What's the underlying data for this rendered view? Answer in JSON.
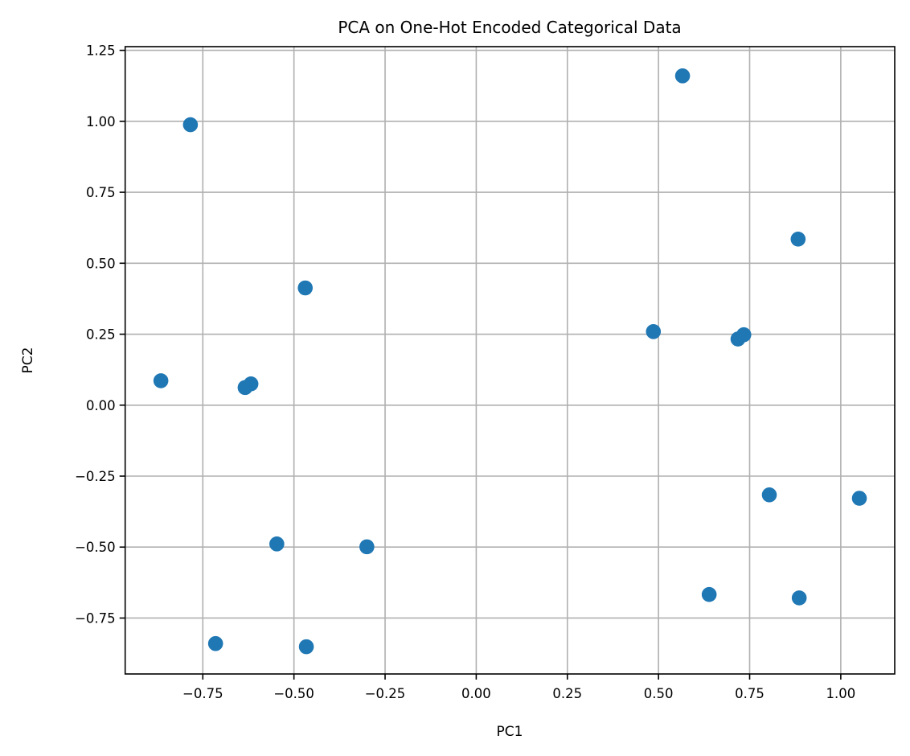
{
  "chart_data": {
    "type": "scatter",
    "title": "PCA on One-Hot Encoded Categorical Data",
    "xlabel": "PC1",
    "ylabel": "PC2",
    "xlim": [
      -0.963,
      1.148
    ],
    "ylim": [
      -0.947,
      1.263
    ],
    "grid": true,
    "marker_color": "#1f77b4",
    "xticks": [
      -0.75,
      -0.5,
      -0.25,
      0.0,
      0.25,
      0.5,
      0.75,
      1.0
    ],
    "xtick_labels": [
      "−0.75",
      "−0.50",
      "−0.25",
      "0.00",
      "0.25",
      "0.50",
      "0.75",
      "1.00"
    ],
    "yticks": [
      -0.75,
      -0.5,
      -0.25,
      0.0,
      0.25,
      0.5,
      0.75,
      1.0,
      1.25
    ],
    "ytick_labels": [
      "−0.75",
      "−0.50",
      "−0.25",
      "0.00",
      "0.25",
      "0.50",
      "0.75",
      "1.00",
      "1.25"
    ],
    "points": [
      {
        "x": -0.784,
        "y": 0.988
      },
      {
        "x": 0.566,
        "y": 1.16
      },
      {
        "x": 0.883,
        "y": 0.585
      },
      {
        "x": -0.469,
        "y": 0.413
      },
      {
        "x": 0.486,
        "y": 0.259
      },
      {
        "x": 0.718,
        "y": 0.233
      },
      {
        "x": 0.734,
        "y": 0.248
      },
      {
        "x": -0.865,
        "y": 0.086
      },
      {
        "x": -0.634,
        "y": 0.062
      },
      {
        "x": -0.618,
        "y": 0.075
      },
      {
        "x": 0.804,
        "y": -0.316
      },
      {
        "x": 1.051,
        "y": -0.328
      },
      {
        "x": -0.547,
        "y": -0.489
      },
      {
        "x": -0.3,
        "y": -0.499
      },
      {
        "x": 0.639,
        "y": -0.667
      },
      {
        "x": 0.886,
        "y": -0.679
      },
      {
        "x": -0.715,
        "y": -0.84
      },
      {
        "x": -0.466,
        "y": -0.851
      }
    ]
  }
}
